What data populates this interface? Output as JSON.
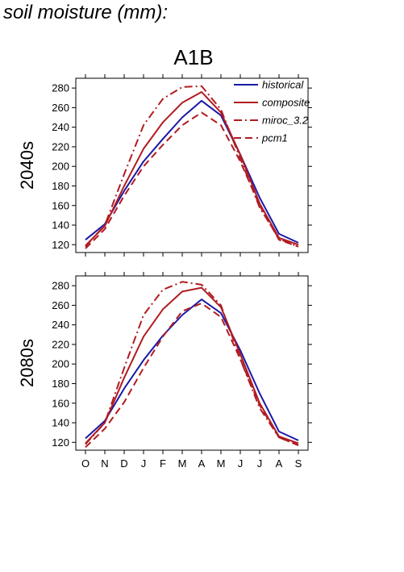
{
  "title": "soil moisture (mm):",
  "scenario": "A1B",
  "colors": {
    "historical": "#1a1aa6",
    "projection": "#b01c22"
  },
  "legend": [
    {
      "name": "historical",
      "color": "#1a1aa6",
      "dash": "solid"
    },
    {
      "name": "composite",
      "color": "#b01c22",
      "dash": "solid"
    },
    {
      "name": "miroc_3.2",
      "color": "#b01c22",
      "dash": "dashdot"
    },
    {
      "name": "pcm1",
      "color": "#b01c22",
      "dash": "dashed"
    }
  ],
  "chart_data": [
    {
      "type": "line",
      "panel_label": "2040s",
      "categories": [
        "O",
        "N",
        "D",
        "J",
        "F",
        "M",
        "A",
        "M",
        "J",
        "J",
        "A",
        "S"
      ],
      "yticks": [
        120,
        140,
        160,
        180,
        200,
        220,
        240,
        260,
        280
      ],
      "ylim": [
        112,
        290
      ],
      "legend_location": "top-right",
      "series": [
        {
          "name": "historical",
          "color": "#1a1aa6",
          "dash": "solid",
          "values": [
            125,
            141,
            175,
            205,
            228,
            250,
            267,
            252,
            212,
            168,
            131,
            122
          ]
        },
        {
          "name": "composite",
          "color": "#b01c22",
          "dash": "solid",
          "values": [
            119,
            139,
            180,
            218,
            245,
            265,
            276,
            255,
            212,
            162,
            127,
            120
          ]
        },
        {
          "name": "miroc_3.2",
          "color": "#b01c22",
          "dash": "dashdot",
          "values": [
            118,
            140,
            192,
            242,
            269,
            281,
            282,
            258,
            208,
            158,
            126,
            118
          ]
        },
        {
          "name": "pcm1",
          "color": "#b01c22",
          "dash": "dashed",
          "values": [
            116,
            136,
            170,
            200,
            222,
            242,
            255,
            242,
            205,
            160,
            125,
            118
          ]
        }
      ]
    },
    {
      "type": "line",
      "panel_label": "2080s",
      "categories": [
        "O",
        "N",
        "D",
        "J",
        "F",
        "M",
        "A",
        "M",
        "J",
        "J",
        "A",
        "S"
      ],
      "yticks": [
        120,
        140,
        160,
        180,
        200,
        220,
        240,
        260,
        280
      ],
      "ylim": [
        112,
        290
      ],
      "series": [
        {
          "name": "historical",
          "color": "#1a1aa6",
          "dash": "solid",
          "values": [
            124,
            142,
            175,
            204,
            229,
            250,
            266,
            252,
            214,
            170,
            131,
            122
          ]
        },
        {
          "name": "composite",
          "color": "#b01c22",
          "dash": "solid",
          "values": [
            119,
            140,
            186,
            228,
            256,
            274,
            278,
            258,
            210,
            160,
            126,
            119
          ]
        },
        {
          "name": "miroc_3.2",
          "color": "#b01c22",
          "dash": "dashdot",
          "values": [
            118,
            140,
            196,
            250,
            276,
            284,
            281,
            260,
            205,
            155,
            125,
            117
          ]
        },
        {
          "name": "pcm1",
          "color": "#b01c22",
          "dash": "dashed",
          "values": [
            115,
            134,
            161,
            196,
            228,
            254,
            262,
            248,
            205,
            158,
            125,
            117
          ]
        }
      ]
    }
  ]
}
